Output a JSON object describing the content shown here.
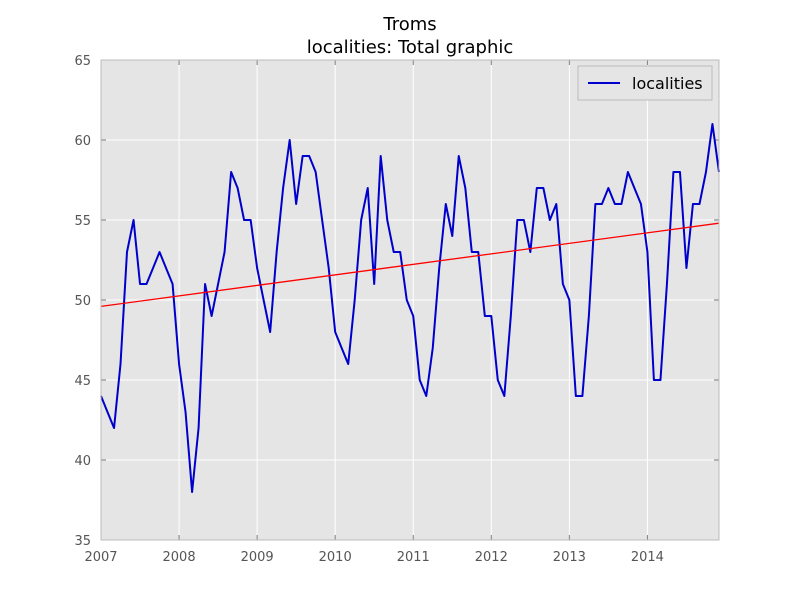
{
  "chart_data": {
    "type": "line",
    "title": "Troms",
    "subtitle": "localities: Total graphic",
    "xlabel": "",
    "ylabel": "",
    "xlim": [
      2007.0,
      2014.917
    ],
    "ylim": [
      35,
      65
    ],
    "x_ticks": [
      "2007",
      "2008",
      "2009",
      "2010",
      "2011",
      "2012",
      "2013",
      "2014"
    ],
    "y_ticks": [
      "35",
      "40",
      "45",
      "50",
      "55",
      "60",
      "65"
    ],
    "grid": true,
    "legend_position": "top-right",
    "series": [
      {
        "name": "localities",
        "color": "#0000cc",
        "x": [
          2007.0,
          2007.083,
          2007.167,
          2007.25,
          2007.333,
          2007.417,
          2007.5,
          2007.583,
          2007.667,
          2007.75,
          2007.833,
          2007.917,
          2008.0,
          2008.083,
          2008.167,
          2008.25,
          2008.333,
          2008.417,
          2008.5,
          2008.583,
          2008.667,
          2008.75,
          2008.833,
          2008.917,
          2009.0,
          2009.083,
          2009.167,
          2009.25,
          2009.333,
          2009.417,
          2009.5,
          2009.583,
          2009.667,
          2009.75,
          2009.833,
          2009.917,
          2010.0,
          2010.083,
          2010.167,
          2010.25,
          2010.333,
          2010.417,
          2010.5,
          2010.583,
          2010.667,
          2010.75,
          2010.833,
          2010.917,
          2011.0,
          2011.083,
          2011.167,
          2011.25,
          2011.333,
          2011.417,
          2011.5,
          2011.583,
          2011.667,
          2011.75,
          2011.833,
          2011.917,
          2012.0,
          2012.083,
          2012.167,
          2012.25,
          2012.333,
          2012.417,
          2012.5,
          2012.583,
          2012.667,
          2012.75,
          2012.833,
          2012.917,
          2013.0,
          2013.083,
          2013.167,
          2013.25,
          2013.333,
          2013.417,
          2013.5,
          2013.583,
          2013.667,
          2013.75,
          2013.833,
          2013.917,
          2014.0,
          2014.083,
          2014.167,
          2014.25,
          2014.333,
          2014.417,
          2014.5,
          2014.583,
          2014.667,
          2014.75,
          2014.833,
          2014.917
        ],
        "values": [
          44,
          43,
          42,
          46,
          53,
          55,
          51,
          51,
          52,
          53,
          52,
          51,
          46,
          43,
          38,
          42,
          51,
          49,
          51,
          53,
          58,
          57,
          55,
          55,
          52,
          50,
          48,
          53,
          57,
          60,
          56,
          59,
          59,
          58,
          55,
          52,
          48,
          47,
          46,
          50,
          55,
          57,
          51,
          59,
          55,
          53,
          53,
          50,
          49,
          45,
          44,
          47,
          52,
          56,
          54,
          59,
          57,
          53,
          53,
          49,
          49,
          45,
          44,
          49,
          55,
          55,
          53,
          57,
          57,
          55,
          56,
          51,
          50,
          44,
          44,
          49,
          56,
          56,
          57,
          56,
          56,
          58,
          57,
          56,
          53,
          45,
          45,
          51,
          58,
          58,
          52,
          56,
          56,
          58,
          61,
          58
        ]
      },
      {
        "name": "",
        "color": "#ff0000",
        "x": [
          2007.0,
          2014.917
        ],
        "values": [
          49.6,
          54.8
        ]
      }
    ]
  }
}
